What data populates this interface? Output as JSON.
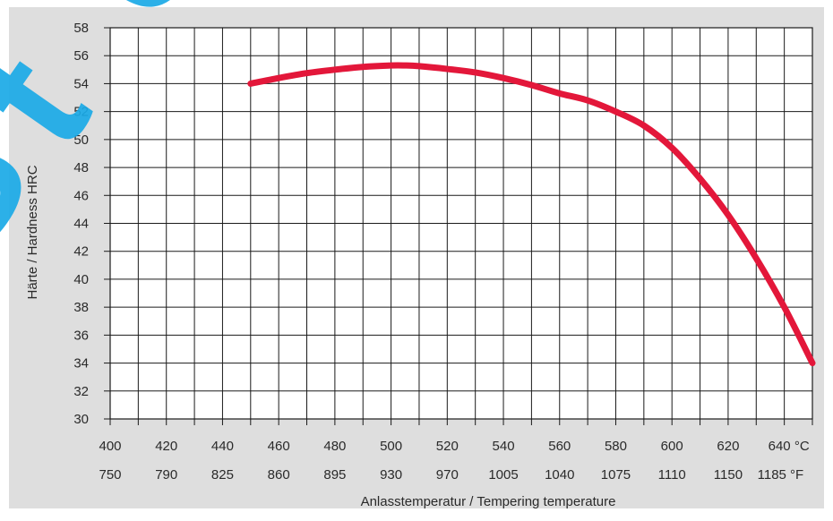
{
  "chart_data": {
    "type": "line",
    "title": "",
    "xlabel": "Anlasstemperatur / Tempering temperature",
    "ylabel": "Härte / Hardness HRC",
    "xlim": [
      400,
      650
    ],
    "ylim": [
      30,
      58
    ],
    "grid": true,
    "x_ticks_celsius": [
      "400",
      "420",
      "440",
      "460",
      "480",
      "500",
      "520",
      "540",
      "560",
      "580",
      "600",
      "620",
      "640 °C"
    ],
    "x_ticks_fahrenheit": [
      "750",
      "790",
      "825",
      "860",
      "895",
      "930",
      "970",
      "1005",
      "1040",
      "1075",
      "1110",
      "1150",
      "1185 °F"
    ],
    "y_ticks": [
      "30",
      "32",
      "34",
      "36",
      "38",
      "40",
      "42",
      "44",
      "46",
      "48",
      "50",
      "52",
      "54",
      "56",
      "58"
    ],
    "series": [
      {
        "color": "#e3173a",
        "x": [
          450,
          460,
          470,
          480,
          490,
          500,
          505,
          510,
          520,
          530,
          540,
          550,
          560,
          570,
          580,
          590,
          600,
          610,
          620,
          630,
          640,
          650
        ],
        "y": [
          54.0,
          54.4,
          54.75,
          55.0,
          55.2,
          55.3,
          55.3,
          55.25,
          55.05,
          54.8,
          54.4,
          53.9,
          53.3,
          52.8,
          52.0,
          51.0,
          49.4,
          47.2,
          44.6,
          41.5,
          38.0,
          34.0
        ]
      }
    ]
  },
  "watermark": {
    "text": "Ste",
    "color": "#1aa9e6"
  }
}
